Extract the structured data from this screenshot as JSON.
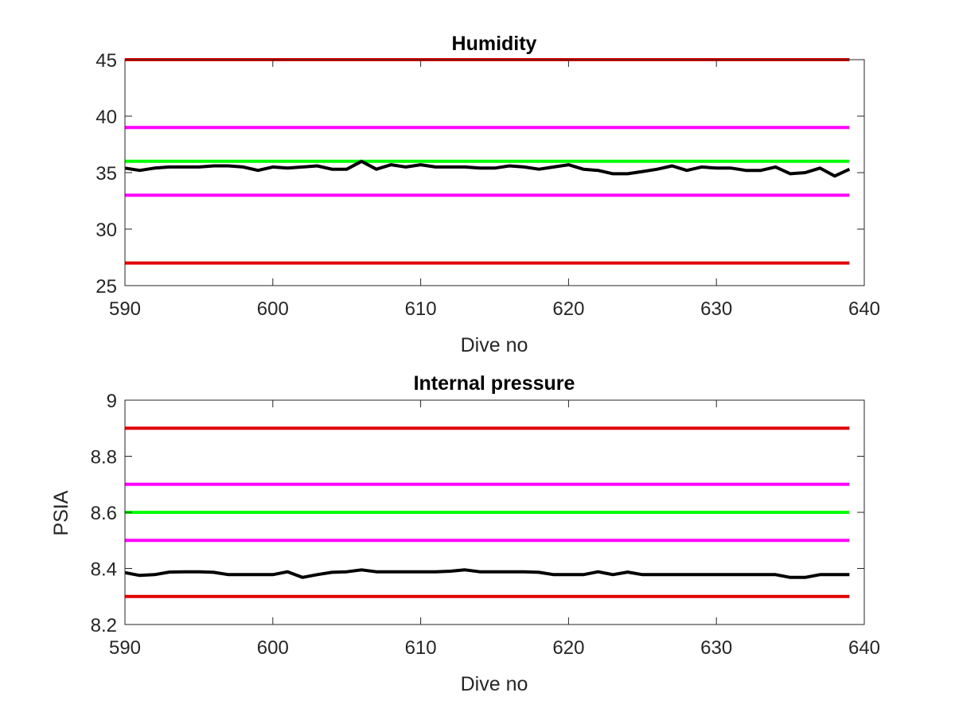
{
  "colors": {
    "red": "#e00000",
    "magenta": "#ff00ff",
    "green": "#00ff00",
    "black": "#000000"
  },
  "chart_data": [
    {
      "type": "line",
      "title": "Humidity",
      "xlabel": "Dive no",
      "ylabel": "",
      "xlim": [
        590,
        640
      ],
      "ylim": [
        25,
        45
      ],
      "xticks": [
        "590",
        "600",
        "610",
        "620",
        "630",
        "640"
      ],
      "yticks": [
        "25",
        "30",
        "35",
        "40",
        "45"
      ],
      "grid": false,
      "hlines": [
        {
          "y": 45,
          "color": "red"
        },
        {
          "y": 39,
          "color": "magenta"
        },
        {
          "y": 36,
          "color": "green"
        },
        {
          "y": 33,
          "color": "magenta"
        },
        {
          "y": 27,
          "color": "red"
        }
      ],
      "series": [
        {
          "color": "black",
          "x": [
            590,
            591,
            592,
            593,
            594,
            595,
            596,
            597,
            598,
            599,
            600,
            601,
            602,
            603,
            604,
            605,
            606,
            607,
            608,
            609,
            610,
            611,
            612,
            613,
            614,
            615,
            616,
            617,
            618,
            619,
            620,
            621,
            622,
            623,
            624,
            625,
            626,
            627,
            628,
            629,
            630,
            631,
            632,
            633,
            634,
            635,
            636,
            637,
            638,
            639
          ],
          "y": [
            35.4,
            35.2,
            35.4,
            35.5,
            35.5,
            35.5,
            35.6,
            35.6,
            35.5,
            35.2,
            35.5,
            35.4,
            35.5,
            35.6,
            35.3,
            35.3,
            36.0,
            35.3,
            35.7,
            35.5,
            35.7,
            35.5,
            35.5,
            35.5,
            35.4,
            35.4,
            35.6,
            35.5,
            35.3,
            35.5,
            35.7,
            35.3,
            35.2,
            34.9,
            34.9,
            35.1,
            35.3,
            35.6,
            35.2,
            35.5,
            35.4,
            35.4,
            35.2,
            35.2,
            35.5,
            34.9,
            35.0,
            35.4,
            34.7,
            35.3
          ]
        }
      ]
    },
    {
      "type": "line",
      "title": "Internal pressure",
      "xlabel": "Dive no",
      "ylabel": "PSIA",
      "xlim": [
        590,
        640
      ],
      "ylim": [
        8.2,
        9.0
      ],
      "xticks": [
        "590",
        "600",
        "610",
        "620",
        "630",
        "640"
      ],
      "yticks": [
        "8.2",
        "8.4",
        "8.6",
        "8.8",
        "9"
      ],
      "grid": false,
      "hlines": [
        {
          "y": 8.9,
          "color": "red"
        },
        {
          "y": 8.7,
          "color": "magenta"
        },
        {
          "y": 8.6,
          "color": "green"
        },
        {
          "y": 8.5,
          "color": "magenta"
        },
        {
          "y": 8.3,
          "color": "red"
        }
      ],
      "series": [
        {
          "color": "black",
          "x": [
            590,
            591,
            592,
            593,
            594,
            595,
            596,
            597,
            598,
            599,
            600,
            601,
            602,
            603,
            604,
            605,
            606,
            607,
            608,
            609,
            610,
            611,
            612,
            613,
            614,
            615,
            616,
            617,
            618,
            619,
            620,
            621,
            622,
            623,
            624,
            625,
            626,
            627,
            628,
            629,
            630,
            631,
            632,
            633,
            634,
            635,
            636,
            637,
            638,
            639
          ],
          "y": [
            8.385,
            8.375,
            8.378,
            8.387,
            8.388,
            8.388,
            8.386,
            8.378,
            8.378,
            8.378,
            8.378,
            8.388,
            8.368,
            8.378,
            8.386,
            8.388,
            8.395,
            8.388,
            8.388,
            8.388,
            8.388,
            8.388,
            8.39,
            8.395,
            8.388,
            8.388,
            8.388,
            8.388,
            8.386,
            8.378,
            8.378,
            8.378,
            8.388,
            8.378,
            8.387,
            8.378,
            8.378,
            8.378,
            8.378,
            8.378,
            8.378,
            8.378,
            8.378,
            8.378,
            8.378,
            8.368,
            8.368,
            8.378,
            8.378,
            8.378
          ]
        }
      ]
    }
  ]
}
